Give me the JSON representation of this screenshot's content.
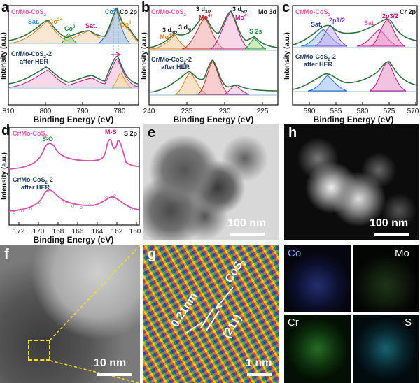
{
  "panels": {
    "a": {
      "letter": "a",
      "element": "Co 2p",
      "sample_top": "Cr/Mo-CoS",
      "sample_top_sub": "2",
      "sample_bottom_1": "Cr/Mo-CoS",
      "sample_bottom_sub": "2",
      "sample_bottom_2": "-2",
      "sample_bottom_3": "after HER",
      "peaks": {
        "sat1": "Sat.",
        "co2": "Co",
        "co2_sup": "2+",
        "co0": "Co",
        "co0_sup": "0",
        "sat2": "Sat.",
        "co3": "Co",
        "co3_sup": "3+",
        "co0b": "Co",
        "co0b_sup": "0"
      },
      "xlabel": "Binding Energy (eV)",
      "ylabel": "Intensity (a.u.)"
    },
    "b": {
      "letter": "b",
      "element": "Mo 3d",
      "sample_top": "Cr/Mo-CoS",
      "sample_top_sub": "2",
      "sample_bottom_1": "Cr/Mo-CoS",
      "sample_bottom_sub": "2",
      "sample_bottom_2": "-2",
      "sample_bottom_3": "after HER",
      "peaks": {
        "d32": "3 d",
        "d32_sub": "3/2",
        "d52": "3 d",
        "d52_sub": "5/2",
        "d32b": "3 d",
        "d32b_sub": "3/2",
        "d52b": "3 d",
        "d52b_sub": "5/2",
        "mo6": "Mo",
        "mo6_sup": "6+",
        "mo4": "Mo",
        "mo4_sup": "4+",
        "mo4b": "Mo",
        "mo4b_sup": "4+",
        "s2s": "S 2s"
      },
      "xlabel": "Binding Energy (eV)",
      "ylabel": "Intensity (a.u.)"
    },
    "c": {
      "letter": "c",
      "element": "Cr 2p",
      "sample_top": "Cr/Mo-CoS",
      "sample_top_sub": "2",
      "sample_bottom_1": "Cr/Mo-CoS",
      "sample_bottom_sub": "2",
      "sample_bottom_2": "-2",
      "sample_bottom_3": "after HER",
      "peaks": {
        "sat1": "Sat.",
        "p12": "2p1/2",
        "sat2": "Sat.",
        "p32": "2p3/2"
      },
      "xlabel": "Binding Energy (eV)",
      "ylabel": "Intensity (a.u.)"
    },
    "d": {
      "letter": "d",
      "element": "S 2p",
      "sample_top": "Cr/Mo-CoS",
      "sample_top_sub": "2",
      "sample_bottom_1": "Cr/Mo-CoS",
      "sample_bottom_sub": "2",
      "sample_bottom_2": "-2",
      "sample_bottom_3": "after HER",
      "peaks": {
        "so": "S-O",
        "ms": "M-S"
      },
      "xlabel": "Binding Energy (eV)",
      "ylabel": "Intensity (a.u.)"
    },
    "e": {
      "letter": "e",
      "scalebar": "100 nm"
    },
    "f": {
      "letter": "f",
      "scalebar": "10 nm"
    },
    "g": {
      "letter": "g",
      "scalebar": "1 nm",
      "d_spacing": "0.21nm",
      "phase": "CoS",
      "phase_sub": "2",
      "plane": "(211)"
    },
    "h": {
      "letter": "h",
      "scalebar": "100 nm"
    },
    "maps": {
      "co": "Co",
      "mo": "Mo",
      "cr": "Cr",
      "s": "S"
    }
  },
  "chart_data": [
    {
      "type": "line",
      "title": "Co 2p",
      "xlabel": "Binding Energy (eV)",
      "ylabel": "Intensity (a.u.)",
      "xlim": [
        810,
        775
      ],
      "xticks": [
        810,
        800,
        790,
        780
      ],
      "series": [
        {
          "name": "Cr/Mo-CoS2",
          "peaks_eV": [
            802.5,
            797.5,
            794.5,
            786.5,
            781.5,
            779.0
          ]
        },
        {
          "name": "Cr/Mo-CoS2-2 after HER",
          "peaks_eV": [
            802.5,
            797.5,
            786.5,
            781.0,
            779.0
          ]
        }
      ]
    },
    {
      "type": "line",
      "title": "Mo 3d",
      "xlabel": "Binding Energy (eV)",
      "ylabel": "Intensity (a.u.)",
      "xlim": [
        240,
        223
      ],
      "xticks": [
        240,
        235,
        230,
        225
      ],
      "series": [
        {
          "name": "Cr/Mo-CoS2",
          "peaks_eV": [
            235.6,
            232.7,
            229.3,
            227.0
          ]
        },
        {
          "name": "Cr/Mo-CoS2-2 after HER",
          "peaks_eV": [
            235.5,
            232.5,
            229.3,
            226.5
          ]
        }
      ]
    },
    {
      "type": "line",
      "title": "Cr 2p",
      "xlabel": "Binding Energy (eV)",
      "ylabel": "Intensity (a.u.)",
      "xlim": [
        593,
        570
      ],
      "xticks": [
        590,
        585,
        580,
        575,
        570
      ],
      "series": [
        {
          "name": "Cr/Mo-CoS2",
          "peaks_eV": [
            590.0,
            587.0,
            580.0,
            577.0
          ]
        },
        {
          "name": "Cr/Mo-CoS2-2 after HER",
          "peaks_eV": [
            586.8,
            576.8
          ]
        }
      ]
    },
    {
      "type": "line",
      "title": "S 2p",
      "xlabel": "Binding Energy (eV)",
      "ylabel": "Intensity (a.u.)",
      "xlim": [
        173,
        160
      ],
      "xticks": [
        172,
        170,
        168,
        166,
        164,
        162,
        160
      ],
      "series": [
        {
          "name": "Cr/Mo-CoS2",
          "peaks_eV": [
            168.5,
            162.8,
            161.6
          ]
        },
        {
          "name": "Cr/Mo-CoS2-2 after HER",
          "peaks_eV": [
            168.4,
            162.5
          ]
        }
      ]
    }
  ],
  "colors": {
    "pink": "#e05aa8",
    "green_fit": "#1e8f3e",
    "dark": "#1f3a5f",
    "magenta": "#c0147e",
    "orange": "#e08020",
    "blue": "#1f6fd0",
    "olive": "#5a8a1a",
    "purple": "#6b3fbf"
  }
}
